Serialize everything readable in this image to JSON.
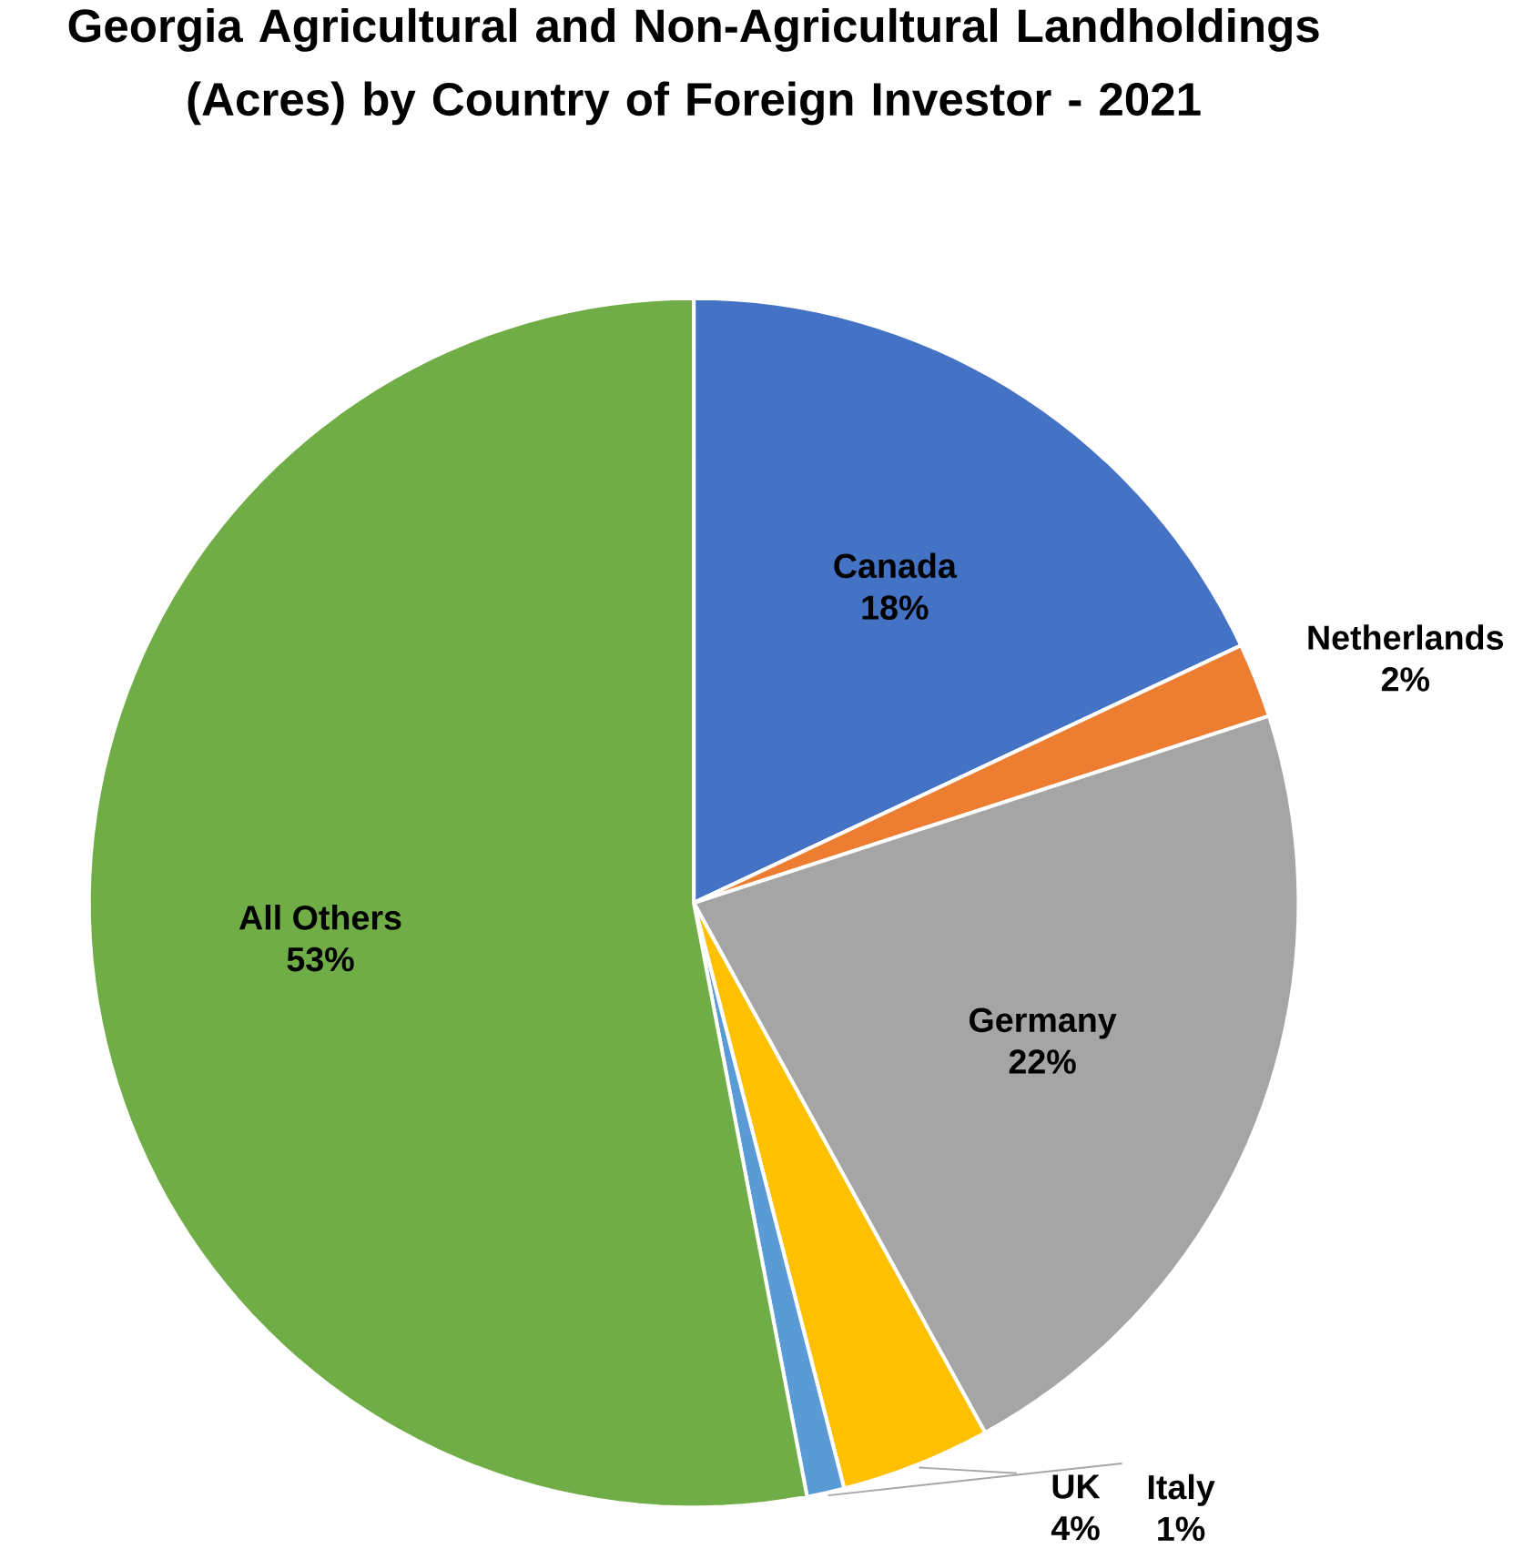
{
  "chart_data": {
    "type": "pie",
    "title": "Georgia Agricultural and Non-Agricultural Landholdings (Acres) by Country of Foreign Investor - 2021",
    "categories": [
      "Canada",
      "Netherlands",
      "Germany",
      "UK",
      "Italy",
      "All Others"
    ],
    "values": [
      18,
      2,
      22,
      4,
      1,
      53
    ],
    "value_labels": [
      "18%",
      "2%",
      "22%",
      "4%",
      "1%",
      "53%"
    ],
    "colors": [
      "#4472c4",
      "#ed7d31",
      "#a5a5a5",
      "#ffc000",
      "#5b9bd5",
      "#70ad47"
    ]
  }
}
